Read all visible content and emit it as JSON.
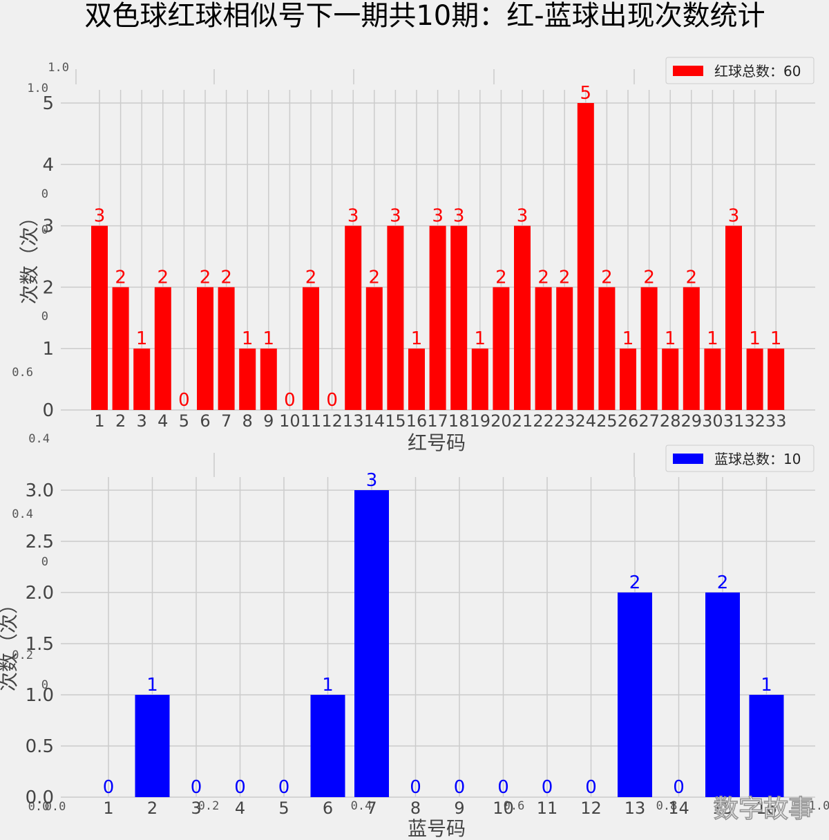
{
  "title": "双色球红球相似号下一期共10期：红-蓝球出现次数统计",
  "colors": {
    "red": "#ff0000",
    "blue": "#0000ff",
    "grid": "#cbcbcb",
    "background": "#f0f0f0"
  },
  "watermark": "数字故事",
  "ghost_ticks": {
    "left": [
      "1.0",
      "1.0",
      "0",
      "0",
      "0",
      "0.6",
      "0.4",
      "0.4",
      "0",
      "0.2",
      "0"
    ],
    "bottom": [
      "0.0",
      "0.0",
      "0.2",
      "0.4",
      "0.6",
      "0.8",
      "1.0"
    ]
  },
  "chart_data": [
    {
      "type": "bar",
      "xlabel": "红号码",
      "ylabel": "次数（次）",
      "legend": "红球总数：60",
      "legend_position": "top-right",
      "grid": true,
      "color": "#ff0000",
      "categories": [
        "1",
        "2",
        "3",
        "4",
        "5",
        "6",
        "7",
        "8",
        "9",
        "10",
        "11",
        "12",
        "13",
        "14",
        "15",
        "16",
        "17",
        "18",
        "19",
        "20",
        "21",
        "22",
        "23",
        "24",
        "25",
        "26",
        "27",
        "28",
        "29",
        "30",
        "31",
        "32",
        "33"
      ],
      "values": [
        3,
        2,
        1,
        2,
        0,
        2,
        2,
        1,
        1,
        0,
        2,
        0,
        3,
        2,
        3,
        1,
        3,
        3,
        1,
        2,
        3,
        2,
        2,
        5,
        2,
        1,
        2,
        1,
        2,
        1,
        3,
        1,
        1
      ],
      "yticks": [
        "0",
        "1",
        "2",
        "3",
        "4",
        "5"
      ],
      "ylim": [
        0,
        5
      ]
    },
    {
      "type": "bar",
      "xlabel": "蓝号码",
      "ylabel": "次数（次）",
      "legend": "蓝球总数：10",
      "legend_position": "top-right",
      "grid": true,
      "color": "#0000ff",
      "categories": [
        "1",
        "2",
        "3",
        "4",
        "5",
        "6",
        "7",
        "8",
        "9",
        "10",
        "11",
        "12",
        "13",
        "14",
        "15",
        "16"
      ],
      "values": [
        0,
        1,
        0,
        0,
        0,
        1,
        3,
        0,
        0,
        0,
        0,
        0,
        2,
        0,
        2,
        1
      ],
      "yticks": [
        "0.0",
        "0.5",
        "1.0",
        "1.5",
        "2.0",
        "2.5",
        "3.0"
      ],
      "ylim": [
        0,
        3
      ]
    }
  ]
}
